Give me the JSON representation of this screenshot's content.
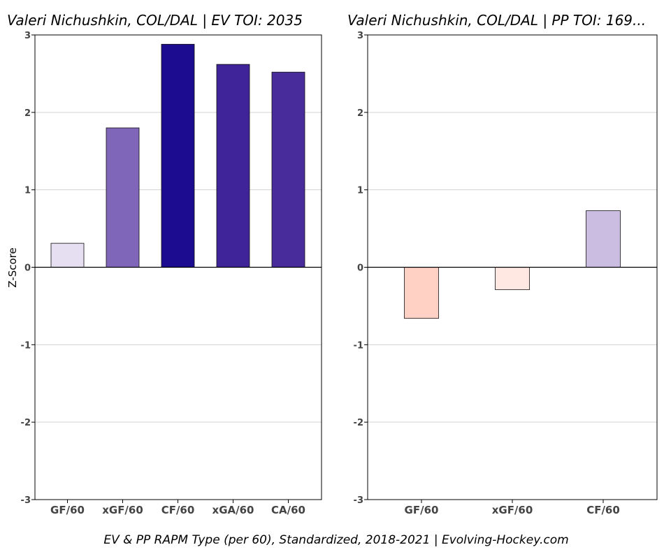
{
  "footer": "EV & PP RAPM Type (per 60), Standardized, 2018-2021    |    Evolving-Hockey.com",
  "chart_data": [
    {
      "type": "bar",
      "title": "Valeri Nichushkin, COL/DAL  |  EV TOI: 2035",
      "ylabel": "Z-Score",
      "ylim": [
        -3,
        3
      ],
      "yticks": [
        -3,
        -2,
        -1,
        0,
        1,
        2,
        3
      ],
      "grid": true,
      "categories": [
        "GF/60",
        "xGF/60",
        "CF/60",
        "xGA/60",
        "CA/60"
      ],
      "values": [
        0.31,
        1.8,
        2.88,
        2.62,
        2.52
      ],
      "colors": [
        "#e6dff1",
        "#8066b9",
        "#1c0c8f",
        "#3e2399",
        "#482c9b"
      ]
    },
    {
      "type": "bar",
      "title": "Valeri Nichushkin, COL/DAL  |  PP TOI: 169...",
      "ylabel": "",
      "ylim": [
        -3,
        3
      ],
      "yticks": [
        -3,
        -2,
        -1,
        0,
        1,
        2,
        3
      ],
      "grid": true,
      "categories": [
        "GF/60",
        "xGF/60",
        "CF/60"
      ],
      "values": [
        -0.66,
        -0.29,
        0.73
      ],
      "colors": [
        "#ffd0c4",
        "#fee8e1",
        "#cbbde2"
      ]
    }
  ]
}
